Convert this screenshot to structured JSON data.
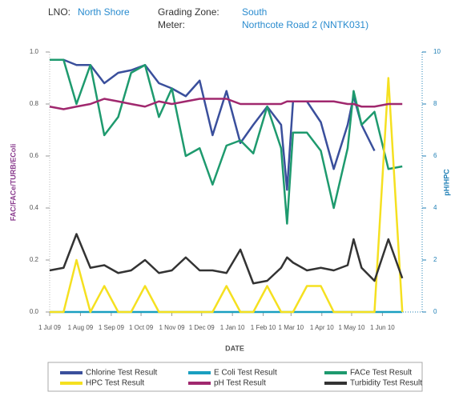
{
  "header": {
    "lno_label": "LNO:",
    "lno": "North Shore",
    "zone_label": "Grading Zone:",
    "zone": "South",
    "meter_label": "Meter:",
    "meter": "Northcote Road 2 (NNTK031)"
  },
  "chart_data": {
    "type": "line",
    "xlabel": "DATE",
    "ylabel": "FAC/FACe/TURB/EColi",
    "y2label": "pH/HPC",
    "xlim": [
      "2009-07-01",
      "2010-07-11"
    ],
    "xticks": [
      {
        "value": "2009-07-01",
        "label": "1 Jul 09"
      },
      {
        "value": "2009-08-01",
        "label": "1 Aug 09"
      },
      {
        "value": "2009-09-01",
        "label": "1 Sep 09"
      },
      {
        "value": "2009-10-01",
        "label": "1 Oct 09"
      },
      {
        "value": "2009-11-01",
        "label": "1 Nov 09"
      },
      {
        "value": "2009-12-01",
        "label": "1 Dec 09"
      },
      {
        "value": "2010-01-01",
        "label": "1 Jan 10"
      },
      {
        "value": "2010-02-01",
        "label": "1 Feb 10"
      },
      {
        "value": "2010-03-01",
        "label": "1 Mar 10"
      },
      {
        "value": "2010-04-01",
        "label": "1 Apr 10"
      },
      {
        "value": "2010-05-01",
        "label": "1 May 10"
      },
      {
        "value": "2010-06-01",
        "label": "1 Jun 10"
      }
    ],
    "ylim": [
      0,
      1
    ],
    "yticks": [
      {
        "value": 0,
        "label": "0.0"
      },
      {
        "value": 0.2,
        "label": "0.2"
      },
      {
        "value": 0.4,
        "label": "0.4"
      },
      {
        "value": 0.6,
        "label": "0.6"
      },
      {
        "value": 0.8,
        "label": "0.8"
      },
      {
        "value": 1,
        "label": "1.0"
      }
    ],
    "y2lim": [
      0,
      10
    ],
    "y2ticks": [
      0,
      2,
      4,
      6,
      8,
      10
    ],
    "x": [
      "2009-07-01",
      "2009-07-15",
      "2009-07-28",
      "2009-08-11",
      "2009-08-25",
      "2009-09-08",
      "2009-09-21",
      "2009-10-05",
      "2009-10-19",
      "2009-11-01",
      "2009-11-15",
      "2009-11-29",
      "2009-12-12",
      "2009-12-26",
      "2010-01-09",
      "2010-01-22",
      "2010-02-05",
      "2010-02-19",
      "2010-02-25",
      "2010-03-03",
      "2010-03-17",
      "2010-03-31",
      "2010-04-13",
      "2010-04-27",
      "2010-05-03",
      "2010-05-11",
      "2010-05-24",
      "2010-06-07",
      "2010-06-21"
    ],
    "series": [
      {
        "name": "Chlorine Test Result",
        "color": "#3a4f9c",
        "values": [
          0.97,
          0.97,
          0.95,
          0.95,
          0.88,
          0.92,
          0.93,
          0.95,
          0.88,
          0.86,
          0.83,
          0.89,
          0.68,
          0.85,
          0.65,
          0.72,
          0.79,
          0.72,
          0.47,
          0.81,
          0.81,
          0.73,
          0.55,
          0.72,
          0.83,
          0.72,
          0.62,
          null,
          null
        ]
      },
      {
        "name": "E Coli Test Result",
        "color": "#1a9fc0",
        "values": [
          0,
          0,
          0,
          0,
          0,
          0,
          0,
          0,
          0,
          0,
          0,
          0,
          0,
          0,
          0,
          0,
          0,
          0,
          0,
          0,
          0,
          0,
          0,
          0,
          0,
          0,
          0,
          0,
          0
        ]
      },
      {
        "name": "FACe Test Result",
        "color": "#1e9a6e",
        "values": [
          0.97,
          0.97,
          0.8,
          0.95,
          0.68,
          0.75,
          0.92,
          0.95,
          0.75,
          0.86,
          0.6,
          0.63,
          0.49,
          0.64,
          0.66,
          0.61,
          0.79,
          0.63,
          0.34,
          0.69,
          0.69,
          0.62,
          0.4,
          0.63,
          0.85,
          0.72,
          0.77,
          0.55,
          0.56
        ]
      },
      {
        "name": "HPC Test Result",
        "color": "#f5e020",
        "axis": "y2",
        "values": [
          0,
          0,
          2,
          0,
          1,
          0,
          0,
          1,
          0,
          0,
          0,
          0,
          0,
          1,
          0,
          0,
          1,
          0,
          0,
          0,
          1,
          1,
          0,
          0,
          0,
          0,
          0,
          9,
          0
        ]
      },
      {
        "name": "pH Test Result",
        "color": "#a0286e",
        "axis": "y2",
        "values": [
          7.9,
          7.8,
          7.9,
          8.0,
          8.2,
          8.1,
          8.0,
          7.9,
          8.1,
          8.0,
          8.1,
          8.2,
          8.2,
          8.2,
          8.0,
          8.0,
          8.0,
          8.0,
          8.1,
          8.1,
          8.1,
          8.1,
          8.1,
          8.0,
          8.0,
          7.9,
          7.9,
          8.0,
          8.0
        ]
      },
      {
        "name": "Turbidity Test Result",
        "color": "#333333",
        "values": [
          0.16,
          0.17,
          0.3,
          0.17,
          0.18,
          0.15,
          0.16,
          0.2,
          0.15,
          0.16,
          0.21,
          0.16,
          0.16,
          0.15,
          0.24,
          0.11,
          0.12,
          0.17,
          0.21,
          0.19,
          0.16,
          0.17,
          0.16,
          0.18,
          0.28,
          0.17,
          0.12,
          0.28,
          0.13
        ]
      }
    ]
  }
}
